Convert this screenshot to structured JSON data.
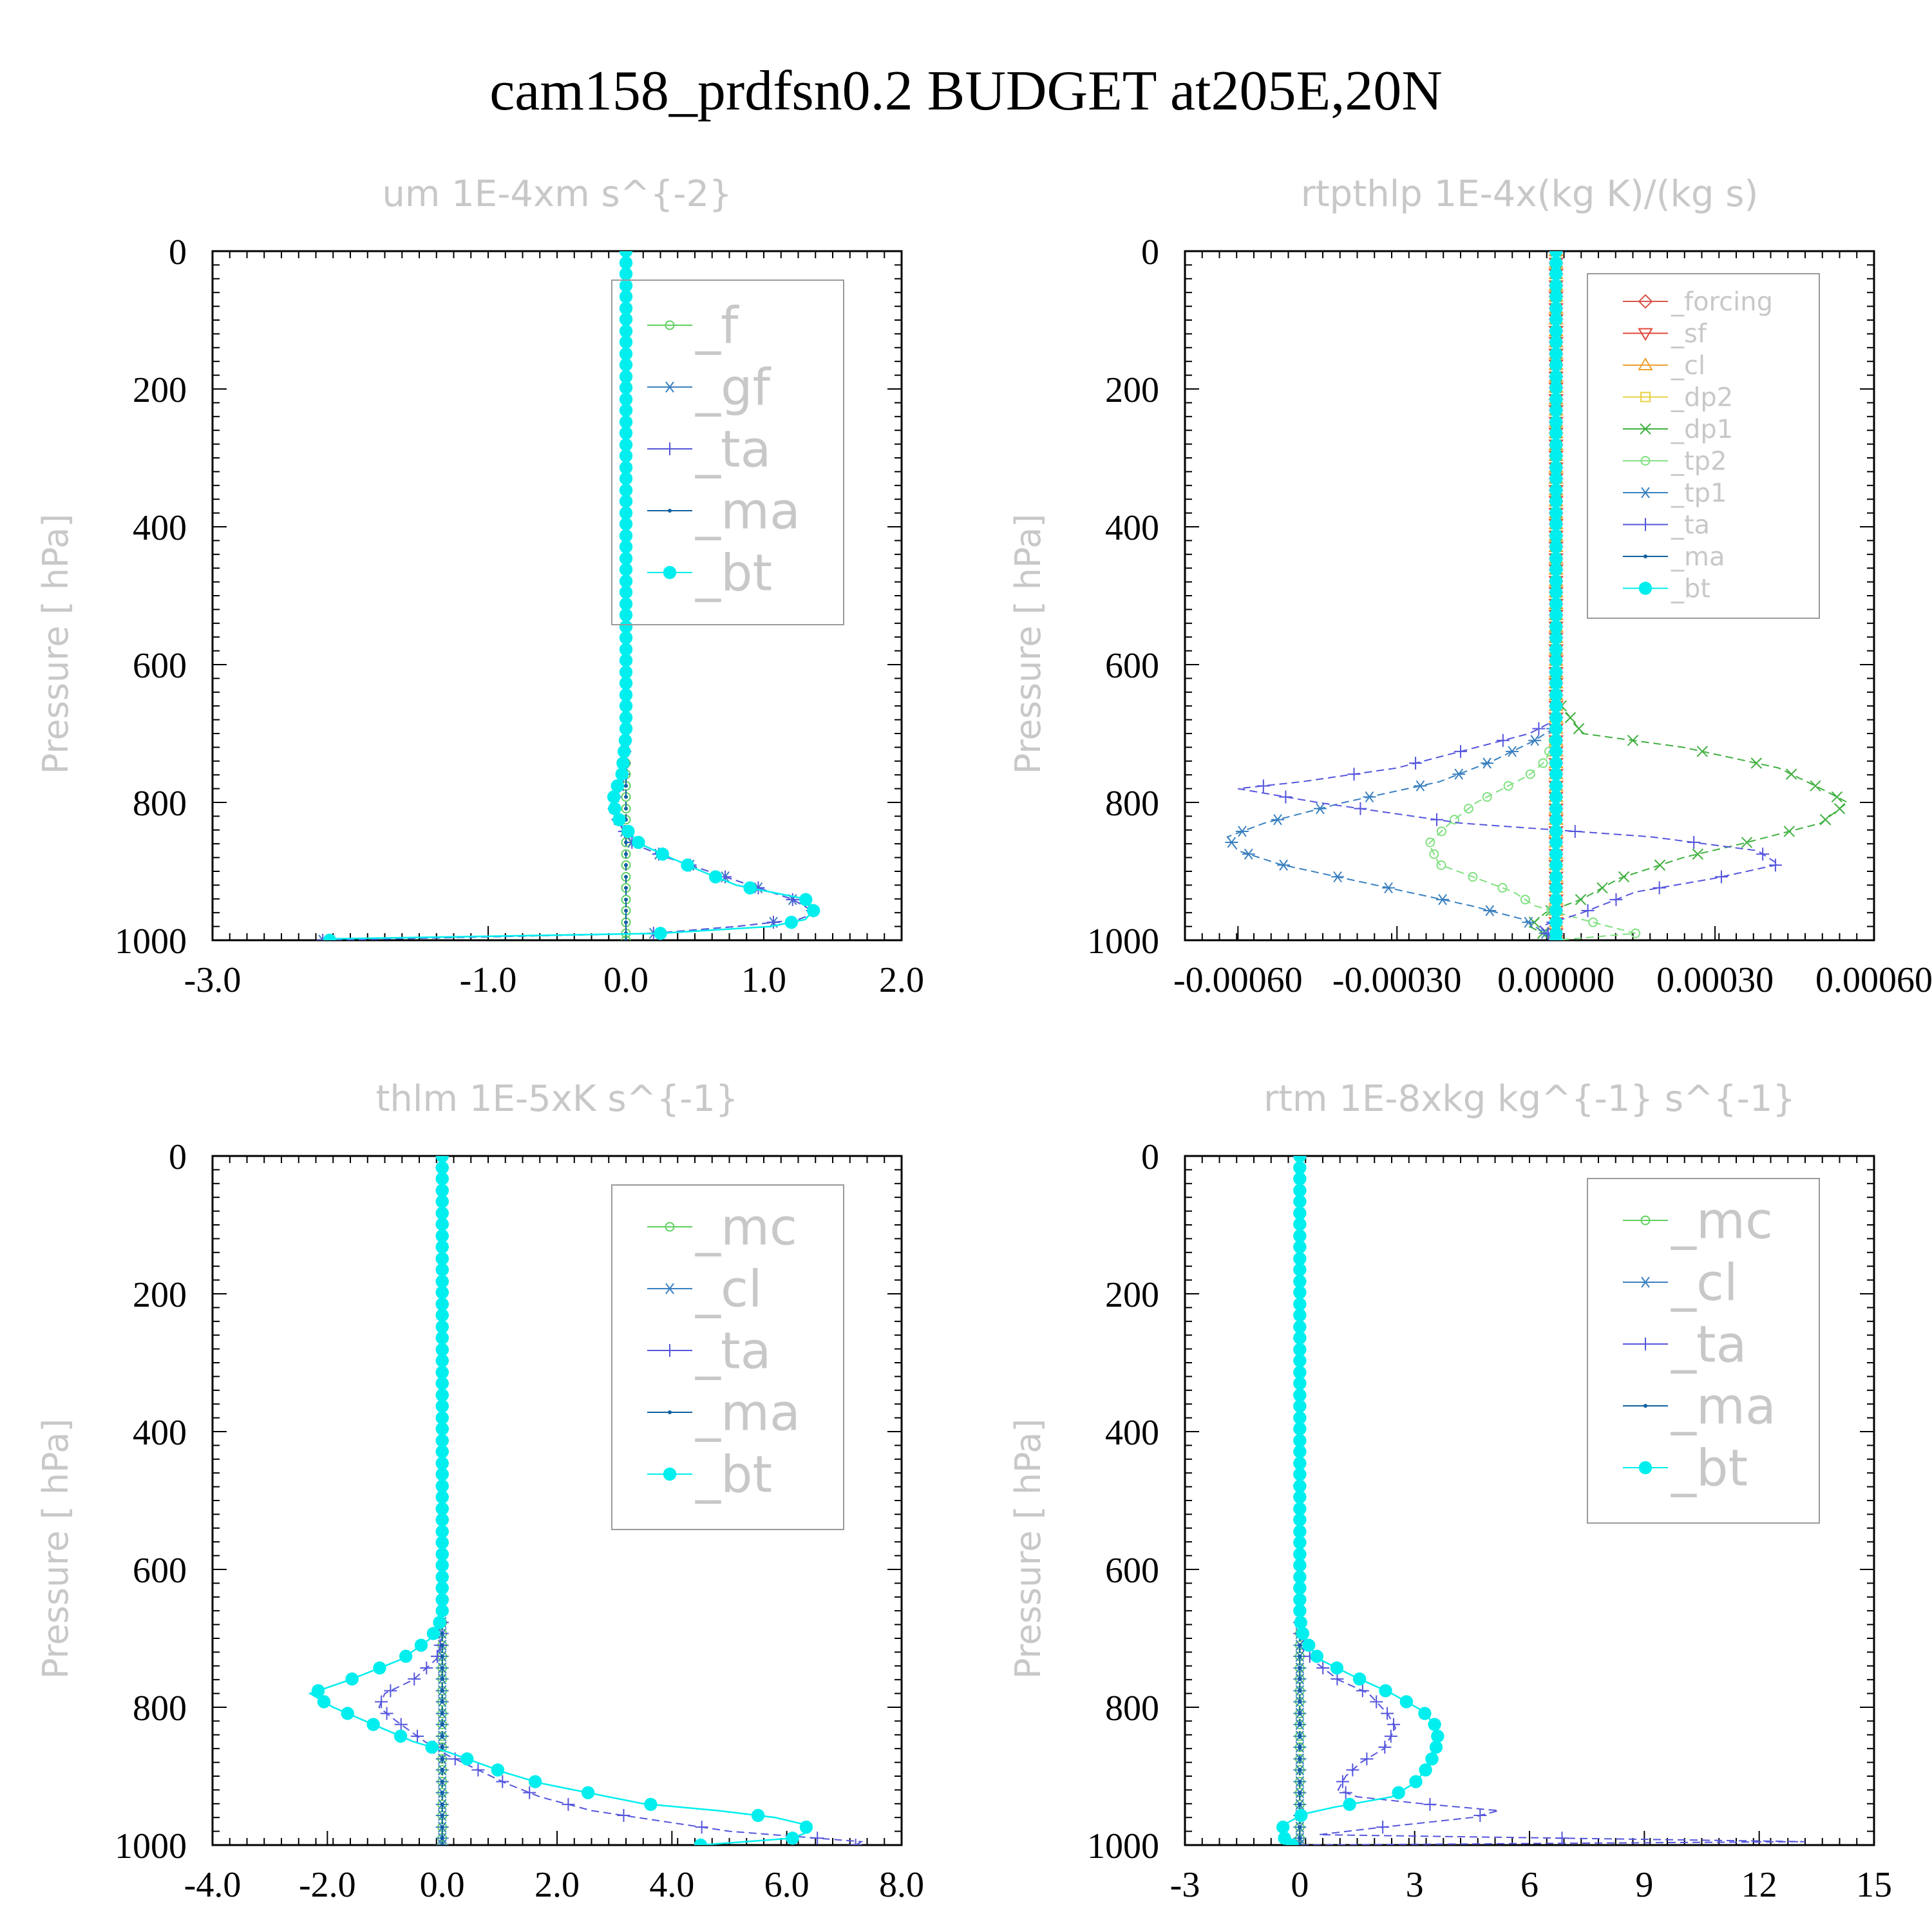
{
  "figure": {
    "title": "cam158_prdfsn0.2  BUDGET at205E,20N"
  },
  "colors": {
    "_forcing": "#d9554a",
    "_sf": "#e04a3a",
    "_cl_rt": "#f0a030",
    "_dp2": "#e8d040",
    "_dp1": "#40b040",
    "_tp2": "#80e080",
    "_tp1": "#3a80c0",
    "_ta": "#5555dd",
    "_ma": "#1060a0",
    "_bt": "#00eeee",
    "_f": "#60d060",
    "_gf": "#3a80c0",
    "_mc": "#60d060",
    "_cl": "#3a80c0"
  },
  "chart_data": [
    {
      "type": "line",
      "title": "um   1E-4xm s^{-2}",
      "ylabel": "Pressure [ hPa]",
      "xlim": [
        -3.0,
        2.0
      ],
      "ylim": [
        1000,
        0
      ],
      "xticks": [
        "-3.0",
        "-1.0",
        "0.0",
        "1.0",
        "2.0"
      ],
      "xtick_values": [
        -3.0,
        -1.0,
        0.0,
        1.0,
        2.0
      ],
      "yticks": [
        "0",
        "200",
        "400",
        "600",
        "800",
        "1000"
      ],
      "ytick_values": [
        0,
        200,
        400,
        600,
        800,
        1000
      ],
      "legend_position": "top-right",
      "series": [
        {
          "name": "_f",
          "marker": "circle-open",
          "color": "_f",
          "x_profile": "zero"
        },
        {
          "name": "_gf",
          "marker": "asterisk",
          "color": "_gf",
          "points": [
            [
              0,
              0
            ],
            [
              0,
              700
            ],
            [
              -0.02,
              760
            ],
            [
              -0.05,
              780
            ],
            [
              -0.1,
              800
            ],
            [
              -0.05,
              830
            ],
            [
              0.05,
              860
            ],
            [
              0.3,
              880
            ],
            [
              0.6,
              900
            ],
            [
              0.9,
              920
            ],
            [
              1.2,
              940
            ],
            [
              1.38,
              960
            ],
            [
              1.25,
              970
            ],
            [
              0.8,
              980
            ],
            [
              0.2,
              990
            ],
            [
              -2.2,
              1000
            ]
          ]
        },
        {
          "name": "_ta",
          "marker": "plus",
          "color": "_ta",
          "points": [
            [
              0,
              0
            ],
            [
              0,
              700
            ],
            [
              -0.02,
              760
            ],
            [
              -0.05,
              780
            ],
            [
              -0.1,
              800
            ],
            [
              -0.05,
              830
            ],
            [
              0.05,
              860
            ],
            [
              0.3,
              880
            ],
            [
              0.6,
              900
            ],
            [
              0.9,
              920
            ],
            [
              1.2,
              940
            ],
            [
              1.38,
              960
            ],
            [
              1.25,
              970
            ],
            [
              0.8,
              980
            ],
            [
              0.2,
              990
            ],
            [
              -2.2,
              1000
            ]
          ]
        },
        {
          "name": "_ma",
          "marker": "dot",
          "color": "_ma",
          "x_profile": "zero"
        },
        {
          "name": "_bt",
          "marker": "filled-circle",
          "color": "_bt",
          "points": [
            [
              0,
              0
            ],
            [
              0,
              700
            ],
            [
              -0.03,
              760
            ],
            [
              -0.07,
              780
            ],
            [
              -0.1,
              800
            ],
            [
              -0.04,
              830
            ],
            [
              0.1,
              860
            ],
            [
              0.32,
              880
            ],
            [
              0.55,
              900
            ],
            [
              0.8,
              920
            ],
            [
              1.05,
              930
            ],
            [
              1.3,
              940
            ],
            [
              1.37,
              955
            ],
            [
              1.3,
              970
            ],
            [
              1.05,
              980
            ],
            [
              0.25,
              990
            ],
            [
              -2.15,
              998
            ]
          ]
        }
      ]
    },
    {
      "type": "line",
      "title": "rtpthlp   1E-4x(kg K)/(kg s)",
      "ylabel": "Pressure [ hPa]",
      "xlim": [
        -0.0007,
        0.0006
      ],
      "ylim": [
        1000,
        0
      ],
      "xticks": [
        "-0.00060",
        "-0.00030",
        "0.00000",
        "0.00030",
        "0.00060"
      ],
      "xtick_values": [
        -0.0006,
        -0.0003,
        0.0,
        0.0003,
        0.0006
      ],
      "yticks": [
        "0",
        "200",
        "400",
        "600",
        "800",
        "1000"
      ],
      "ytick_values": [
        0,
        200,
        400,
        600,
        800,
        1000
      ],
      "legend_position": "top-right",
      "series": [
        {
          "name": "_forcing",
          "marker": "diamond-open",
          "color": "_forcing",
          "x_profile": "zero"
        },
        {
          "name": "_sf",
          "marker": "triangle-down",
          "color": "_sf",
          "x_profile": "zero"
        },
        {
          "name": "_cl",
          "marker": "triangle-up",
          "color": "_cl_rt",
          "x_profile": "zero"
        },
        {
          "name": "_dp2",
          "marker": "square-open",
          "color": "_dp2",
          "x_profile": "zero"
        },
        {
          "name": "_dp1",
          "marker": "cross",
          "color": "_dp1",
          "points": [
            [
              0,
              0
            ],
            [
              0,
              650
            ],
            [
              5e-05,
              700
            ],
            [
              0.00024,
              720
            ],
            [
              0.00042,
              750
            ],
            [
              0.0005,
              780
            ],
            [
              0.00055,
              800
            ],
            [
              0.0005,
              830
            ],
            [
              0.00035,
              860
            ],
            [
              0.00024,
              880
            ],
            [
              0.00012,
              910
            ],
            [
              5e-05,
              940
            ],
            [
              -2e-05,
              960
            ],
            [
              -5e-05,
              980
            ],
            [
              0,
              1000
            ]
          ]
        },
        {
          "name": "_tp2",
          "marker": "circle-open",
          "color": "_tp2",
          "points": [
            [
              0,
              0
            ],
            [
              0,
              700
            ],
            [
              -2e-05,
              740
            ],
            [
              -5e-05,
              760
            ],
            [
              -0.0001,
              780
            ],
            [
              -0.00015,
              800
            ],
            [
              -0.0002,
              830
            ],
            [
              -0.00024,
              860
            ],
            [
              -0.00022,
              890
            ],
            [
              -0.00015,
              910
            ],
            [
              -8e-05,
              930
            ],
            [
              -4e-05,
              950
            ],
            [
              5e-05,
              970
            ],
            [
              0.00015,
              990
            ],
            [
              0,
              1000
            ]
          ]
        },
        {
          "name": "_tp1",
          "marker": "asterisk",
          "color": "_tp1",
          "points": [
            [
              0,
              0
            ],
            [
              0,
              690
            ],
            [
              -4e-05,
              710
            ],
            [
              -0.00012,
              740
            ],
            [
              -0.00022,
              770
            ],
            [
              -0.0004,
              800
            ],
            [
              -0.00055,
              830
            ],
            [
              -0.00062,
              850
            ],
            [
              -0.0006,
              870
            ],
            [
              -0.00052,
              890
            ],
            [
              -0.0004,
              910
            ],
            [
              -0.00028,
              930
            ],
            [
              -0.00016,
              950
            ],
            [
              -6e-05,
              970
            ],
            [
              0,
              1000
            ]
          ]
        },
        {
          "name": "_ta",
          "marker": "plus",
          "color": "_ta",
          "points": [
            [
              0,
              0
            ],
            [
              0,
              680
            ],
            [
              -5e-05,
              700
            ],
            [
              -0.00015,
              720
            ],
            [
              -0.0003,
              750
            ],
            [
              -0.00048,
              770
            ],
            [
              -0.0006,
              780
            ],
            [
              -0.00045,
              800
            ],
            [
              -0.00018,
              830
            ],
            [
              0.00018,
              850
            ],
            [
              0.00038,
              870
            ],
            [
              0.00042,
              890
            ],
            [
              0.0003,
              910
            ],
            [
              0.00015,
              930
            ],
            [
              5e-05,
              960
            ],
            [
              -3e-05,
              980
            ],
            [
              0,
              1000
            ]
          ]
        },
        {
          "name": "_ma",
          "marker": "dot",
          "color": "_ma",
          "x_profile": "zero"
        },
        {
          "name": "_bt",
          "marker": "filled-circle",
          "color": "_bt",
          "x_profile": "zero"
        }
      ]
    },
    {
      "type": "line",
      "title": "thlm   1E-5xK s^{-1}",
      "ylabel": "Pressure [ hPa]",
      "xlim": [
        -4.0,
        8.0
      ],
      "ylim": [
        1000,
        0
      ],
      "xticks": [
        "-4.0",
        "-2.0",
        "0.0",
        "2.0",
        "4.0",
        "6.0",
        "8.0"
      ],
      "xtick_values": [
        -4.0,
        -2.0,
        0.0,
        2.0,
        4.0,
        6.0,
        8.0
      ],
      "yticks": [
        "0",
        "200",
        "400",
        "600",
        "800",
        "1000"
      ],
      "ytick_values": [
        0,
        200,
        400,
        600,
        800,
        1000
      ],
      "legend_position": "top-right",
      "series": [
        {
          "name": "_mc",
          "marker": "circle-open",
          "color": "_mc",
          "x_profile": "zero"
        },
        {
          "name": "_cl",
          "marker": "asterisk",
          "color": "_cl",
          "x_profile": "zero"
        },
        {
          "name": "_ta",
          "marker": "plus",
          "color": "_ta",
          "points": [
            [
              0,
              0
            ],
            [
              0,
              700
            ],
            [
              -0.1,
              730
            ],
            [
              -0.5,
              760
            ],
            [
              -1.0,
              780
            ],
            [
              -1.1,
              800
            ],
            [
              -0.8,
              820
            ],
            [
              -0.3,
              850
            ],
            [
              0.1,
              870
            ],
            [
              0.6,
              890
            ],
            [
              1.1,
              910
            ],
            [
              1.7,
              930
            ],
            [
              2.6,
              950
            ],
            [
              3.8,
              965
            ],
            [
              5.0,
              980
            ],
            [
              7.3,
              995
            ],
            [
              7.2,
              1000
            ]
          ]
        },
        {
          "name": "_ma",
          "marker": "dot",
          "color": "_ma",
          "x_profile": "zero"
        },
        {
          "name": "_bt",
          "marker": "filled-circle",
          "color": "_bt",
          "points": [
            [
              0,
              0
            ],
            [
              0,
              670
            ],
            [
              -0.2,
              700
            ],
            [
              -0.7,
              730
            ],
            [
              -1.6,
              760
            ],
            [
              -2.3,
              780
            ],
            [
              -1.9,
              800
            ],
            [
              -1.2,
              825
            ],
            [
              -0.5,
              850
            ],
            [
              0.1,
              865
            ],
            [
              0.6,
              880
            ],
            [
              1.1,
              895
            ],
            [
              1.7,
              910
            ],
            [
              2.6,
              925
            ],
            [
              3.5,
              940
            ],
            [
              4.8,
              950
            ],
            [
              5.8,
              960
            ],
            [
              6.3,
              970
            ],
            [
              6.4,
              980
            ],
            [
              6.1,
              990
            ],
            [
              4.5,
              1000
            ]
          ]
        }
      ]
    },
    {
      "type": "line",
      "title": "rtm   1E-8xkg kg^{-1} s^{-1}",
      "ylabel": "Pressure [ hPa]",
      "xlim": [
        -3,
        15
      ],
      "ylim": [
        1000,
        0
      ],
      "xticks": [
        "-3",
        "0",
        "3",
        "6",
        "9",
        "12",
        "15"
      ],
      "xtick_values": [
        -3,
        0,
        3,
        6,
        9,
        12,
        15
      ],
      "yticks": [
        "0",
        "200",
        "400",
        "600",
        "800",
        "1000"
      ],
      "ytick_values": [
        0,
        200,
        400,
        600,
        800,
        1000
      ],
      "legend_position": "top-right",
      "series": [
        {
          "name": "_mc",
          "marker": "circle-open",
          "color": "_mc",
          "x_profile": "zero"
        },
        {
          "name": "_cl",
          "marker": "asterisk",
          "color": "_cl",
          "x_profile": "zero"
        },
        {
          "name": "_ta",
          "marker": "plus",
          "color": "_ta",
          "points": [
            [
              0,
              0
            ],
            [
              0,
              700
            ],
            [
              0.3,
              730
            ],
            [
              1.0,
              760
            ],
            [
              1.8,
              780
            ],
            [
              2.3,
              810
            ],
            [
              2.5,
              830
            ],
            [
              2.2,
              860
            ],
            [
              1.6,
              880
            ],
            [
              1.2,
              900
            ],
            [
              1.0,
              920
            ],
            [
              1.5,
              930
            ],
            [
              3.2,
              940
            ],
            [
              5.2,
              950
            ],
            [
              4.5,
              960
            ],
            [
              2.0,
              975
            ],
            [
              0.5,
              985
            ],
            [
              13.2,
              995
            ],
            [
              0,
              1000
            ]
          ]
        },
        {
          "name": "_ma",
          "marker": "dot",
          "color": "_ma",
          "x_profile": "zero"
        },
        {
          "name": "_bt",
          "marker": "filled-circle",
          "color": "_bt",
          "points": [
            [
              0,
              0
            ],
            [
              0,
              670
            ],
            [
              0.1,
              700
            ],
            [
              0.5,
              730
            ],
            [
              1.4,
              755
            ],
            [
              2.4,
              780
            ],
            [
              3.2,
              805
            ],
            [
              3.6,
              830
            ],
            [
              3.6,
              850
            ],
            [
              3.5,
              870
            ],
            [
              3.3,
              890
            ],
            [
              3.0,
              910
            ],
            [
              2.4,
              930
            ],
            [
              0.9,
              945
            ],
            [
              0.1,
              955
            ],
            [
              -0.4,
              970
            ],
            [
              -0.5,
              980
            ],
            [
              -0.4,
              990
            ],
            [
              -0.2,
              998
            ]
          ]
        }
      ]
    }
  ]
}
